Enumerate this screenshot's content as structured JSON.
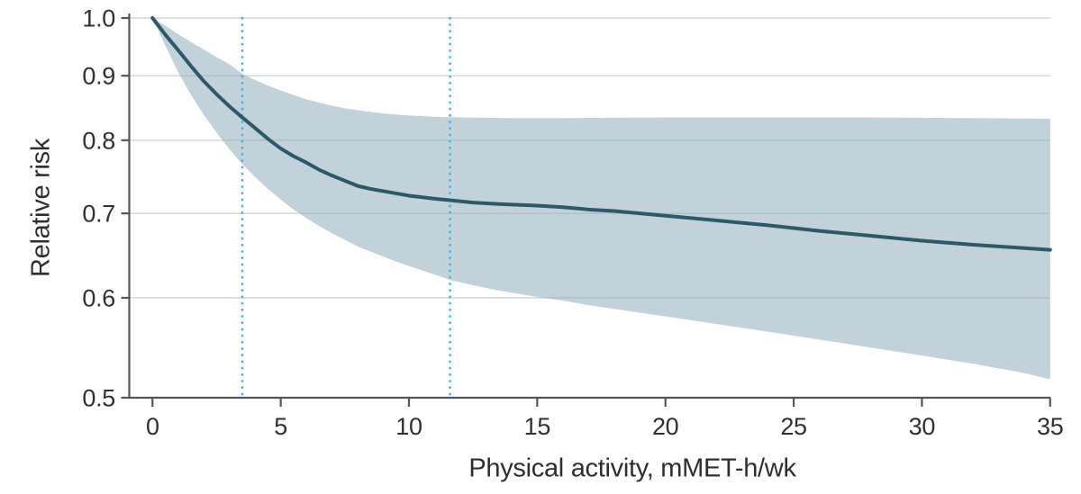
{
  "chart_data": {
    "type": "line",
    "title": "",
    "xlabel": "Physical activity, mMET-h/wk",
    "ylabel": "Relative risk",
    "x_ticks": [
      0,
      5,
      10,
      15,
      20,
      25,
      30,
      35
    ],
    "x_tick_labels": [
      "0",
      "5",
      "10",
      "15",
      "20",
      "25",
      "30",
      "35"
    ],
    "y_ticks": [
      1.0,
      0.9,
      0.8,
      0.7,
      0.6,
      0.5
    ],
    "y_tick_labels": [
      "1.0",
      "0.9",
      "0.8",
      "0.7",
      "0.6",
      "0.5"
    ],
    "y_gridlines": [
      1.0,
      0.9,
      0.8,
      0.7,
      0.6
    ],
    "xlim": [
      0,
      35
    ],
    "ylim": [
      0.5,
      1.0
    ],
    "y_scale": "log",
    "grid": "horizontal",
    "legend": "none",
    "reference_lines": {
      "style": "vertical-dotted",
      "x": [
        3.5,
        11.6
      ]
    },
    "series": [
      {
        "name": "Relative risk (dose-response curve)",
        "role": "line",
        "x": [
          0,
          0.5,
          1,
          1.5,
          2,
          2.5,
          3,
          3.5,
          4,
          4.5,
          5,
          5.5,
          6,
          6.5,
          7,
          7.5,
          8,
          8.5,
          9,
          9.5,
          10,
          10.5,
          11,
          11.6,
          12.5,
          13.5,
          15,
          16,
          17,
          18,
          19,
          20,
          22,
          24,
          26,
          28,
          30,
          32,
          34,
          35
        ],
        "y": [
          1.0,
          0.97,
          0.943,
          0.916,
          0.891,
          0.87,
          0.851,
          0.834,
          0.818,
          0.802,
          0.788,
          0.777,
          0.768,
          0.758,
          0.75,
          0.743,
          0.736,
          0.732,
          0.729,
          0.726,
          0.723,
          0.721,
          0.719,
          0.717,
          0.714,
          0.712,
          0.71,
          0.708,
          0.705,
          0.703,
          0.7,
          0.697,
          0.691,
          0.685,
          0.678,
          0.672,
          0.666,
          0.661,
          0.657,
          0.655
        ]
      },
      {
        "name": "95% CI upper bound",
        "role": "band-upper",
        "x": [
          0,
          0.5,
          1,
          1.5,
          2,
          2.5,
          3,
          3.5,
          4,
          4.5,
          5,
          5.5,
          6,
          6.5,
          7,
          7.5,
          8,
          9,
          10,
          11,
          12,
          14,
          16,
          20,
          24,
          28,
          32,
          35
        ],
        "y": [
          1.0,
          0.986,
          0.971,
          0.957,
          0.944,
          0.931,
          0.919,
          0.903,
          0.893,
          0.884,
          0.876,
          0.869,
          0.862,
          0.857,
          0.852,
          0.848,
          0.845,
          0.84,
          0.837,
          0.835,
          0.834,
          0.833,
          0.833,
          0.834,
          0.834,
          0.834,
          0.833,
          0.832
        ]
      },
      {
        "name": "95% CI lower bound",
        "role": "band-lower",
        "x": [
          0,
          0.5,
          1,
          1.5,
          2,
          2.5,
          3,
          3.5,
          4,
          4.5,
          5,
          5.5,
          6,
          6.5,
          7,
          7.5,
          8,
          8.5,
          9,
          9.5,
          10,
          10.5,
          11,
          11.6,
          12.5,
          13.5,
          15,
          16,
          17,
          18,
          19,
          20,
          22,
          24,
          26,
          28,
          30,
          32,
          34,
          35
        ],
        "y": [
          1.0,
          0.951,
          0.906,
          0.869,
          0.838,
          0.811,
          0.787,
          0.766,
          0.748,
          0.732,
          0.718,
          0.705,
          0.694,
          0.684,
          0.675,
          0.667,
          0.659,
          0.653,
          0.647,
          0.641,
          0.636,
          0.631,
          0.626,
          0.62,
          0.614,
          0.608,
          0.601,
          0.597,
          0.592,
          0.588,
          0.584,
          0.58,
          0.572,
          0.564,
          0.556,
          0.548,
          0.54,
          0.532,
          0.523,
          0.517
        ]
      }
    ],
    "colors": {
      "line": "#2a5a6a",
      "band": "#c2d2da",
      "vline": "#3cb4e7",
      "grid": "#9aa7ae",
      "axis": "#55565a",
      "text": "#303030",
      "background": "#ffffff"
    }
  }
}
